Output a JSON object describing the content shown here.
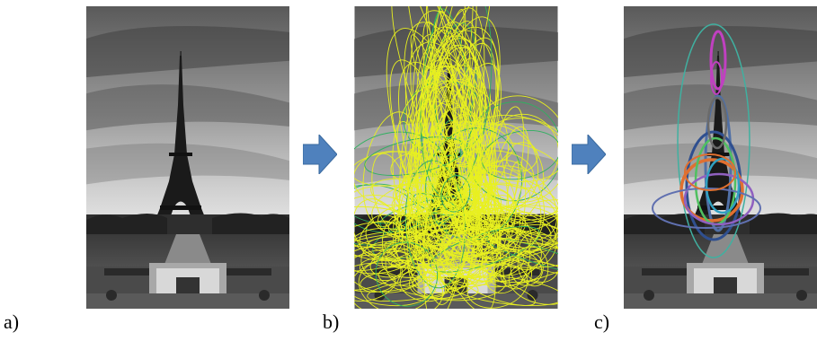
{
  "panels": [
    {
      "label": "a)",
      "content": "eiffel-tower-photo"
    },
    {
      "label": "b)",
      "content": "eiffel-tower-photo-with-yellow-ellipses"
    },
    {
      "label": "c)",
      "content": "eiffel-tower-photo-with-colored-ellipses"
    }
  ],
  "colors": {
    "arrow": "#4f81bd",
    "yellow_ellipses": "#e8f020",
    "cluster_ellipses": [
      "#c040c0",
      "#40b0a0",
      "#6070b0",
      "#e07030",
      "#50c060",
      "#9060c0",
      "#30a0c0"
    ]
  }
}
